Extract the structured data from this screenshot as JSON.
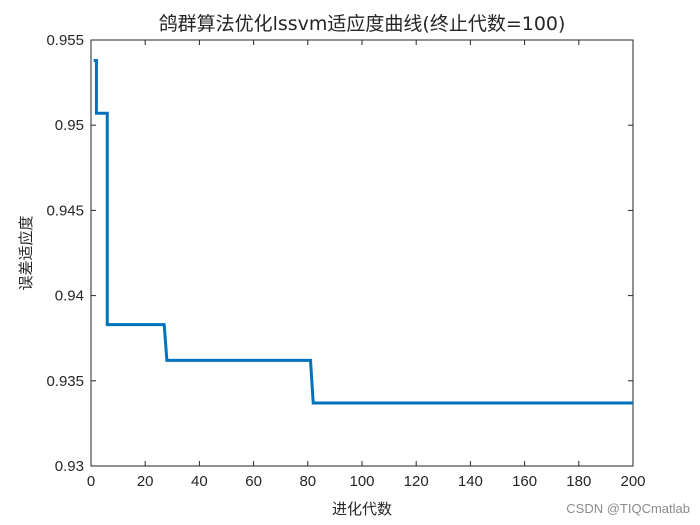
{
  "chart_data": {
    "type": "line",
    "title": "鸽群算法优化lssvm适应度曲线(终止代数=100)",
    "xlabel": "进化代数",
    "ylabel": "误差适应度",
    "xlim": [
      0,
      200
    ],
    "ylim": [
      0.93,
      0.955
    ],
    "xticks": [
      "0",
      "20",
      "40",
      "60",
      "80",
      "100",
      "120",
      "140",
      "160",
      "180",
      "200"
    ],
    "yticks": [
      "0.93",
      "0.935",
      "0.94",
      "0.945",
      "0.95",
      "0.955"
    ],
    "grid": false,
    "series": [
      {
        "color": "#0072BD",
        "x": [
          1,
          2,
          2,
          5,
          5,
          6,
          6,
          27,
          27,
          28,
          28,
          81,
          81,
          82,
          82,
          200
        ],
        "y": [
          0.9538,
          0.9538,
          0.9507,
          0.9507,
          0.9507,
          0.9507,
          0.9383,
          0.9383,
          0.9383,
          0.9362,
          0.9362,
          0.9362,
          0.9362,
          0.9337,
          0.9337,
          0.9337
        ]
      }
    ]
  },
  "watermark": "CSDN @TIQCmatlab"
}
